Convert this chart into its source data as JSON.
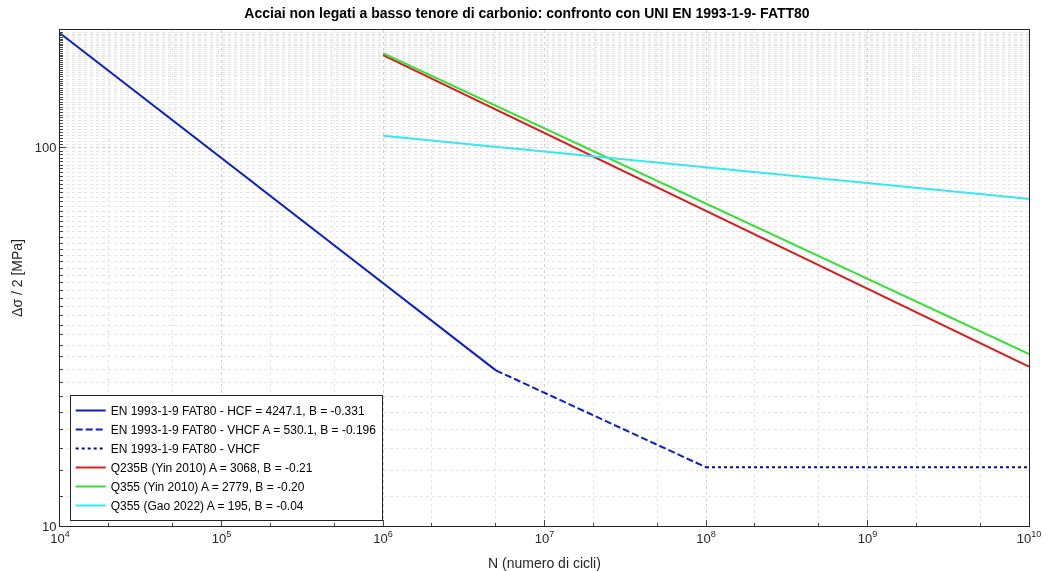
{
  "chart_data": {
    "type": "line",
    "title": "Acciai non legati a basso tenore di carbonio: confronto con UNI EN 1993-1-9- FATT80",
    "xlabel": "N (numero di cicli)",
    "ylabel": "Δσ / 2 [MPa]",
    "log": "xy",
    "grid": true,
    "legend": "bottom left",
    "xlim": [
      10000,
      10000000000
    ],
    "ylim": [
      10,
      205
    ],
    "xticks": [
      {
        "value": 10000,
        "label": "10$^{4}$"
      },
      {
        "value": 100000,
        "label": "10$^{5}$"
      },
      {
        "value": 1000000,
        "label": "10$^{6}$"
      },
      {
        "value": 10000000,
        "label": "10$^{7}$"
      },
      {
        "value": 100000000,
        "label": "10$^{8}$"
      },
      {
        "value": 1000000000,
        "label": "10$^{9}$"
      },
      {
        "value": 10000000000,
        "label": "10$^{10}$"
      }
    ],
    "yticks": [
      10,
      100
    ],
    "series": [
      {
        "name": "EN 1993-1-9 FAT80 - HCF = 4247.1, B = -0.331",
        "color": "#0a1fc8",
        "line_style": "solid",
        "x": [
          10000,
          5000000
        ],
        "values": [
          201,
          25.8
        ]
      },
      {
        "name": "EN 1993-1-9 FAT80 - VHCF A = 530.1, B = -0.196",
        "color": "#0a1fc8",
        "line_style": "dashed",
        "x": [
          5000000,
          100000000
        ],
        "values": [
          25.8,
          14.3
        ]
      },
      {
        "name": "EN 1993-1-9 FAT80 - VHCF",
        "color": "#0a0a8c",
        "line_style": "dotted",
        "x": [
          100000000,
          10000000000
        ],
        "values": [
          14.3,
          14.3
        ]
      },
      {
        "name": "Q235B (Yin 2010) A = 3068, B = -0.21",
        "color": "#d81e1e",
        "line_style": "solid",
        "x": [
          1000000,
          10000000000
        ],
        "values": [
          176,
          26.4
        ]
      },
      {
        "name": "Q355 (Yin 2010) A = 2779, B = -0.20",
        "color": "#33e033",
        "line_style": "solid",
        "x": [
          1000000,
          10000000000
        ],
        "values": [
          178,
          28.5
        ]
      },
      {
        "name": "Q355 (Gao 2022) A = 195, B = -0.04",
        "color": "#33e8f0",
        "line_style": "solid",
        "x": [
          1000000,
          10000000000
        ],
        "values": [
          107.6,
          73.3
        ]
      }
    ]
  }
}
